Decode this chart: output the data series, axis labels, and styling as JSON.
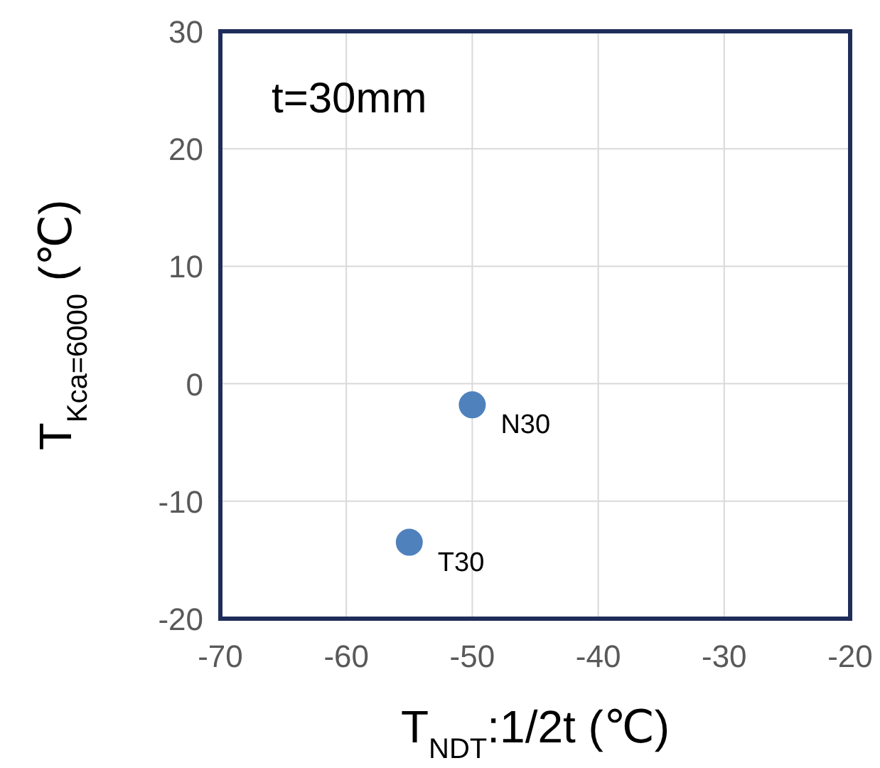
{
  "chart_data": {
    "type": "scatter",
    "title": "t=30mm",
    "xlabel": "T$_{NDT}$:1/2t (℃)",
    "ylabel": "T$_{Kca=6000}$ (℃)",
    "x": [
      -50,
      -55
    ],
    "series": [
      {
        "color": "#4f81bd",
        "values": [
          -1.8,
          -13.5
        ]
      }
    ],
    "xlim": [
      -70,
      -20
    ],
    "xticks": [
      -70,
      -60,
      -50,
      -40,
      -30,
      -20
    ],
    "ylim": [
      -20,
      30
    ],
    "yticks": [
      -20,
      -10,
      0,
      10,
      20,
      30
    ],
    "grid": true,
    "marker": "circle",
    "annotations": [
      {
        "text": "N30",
        "x": -50,
        "y": -1.8
      },
      {
        "text": "T30",
        "x": -55,
        "y": -13.5
      }
    ]
  }
}
